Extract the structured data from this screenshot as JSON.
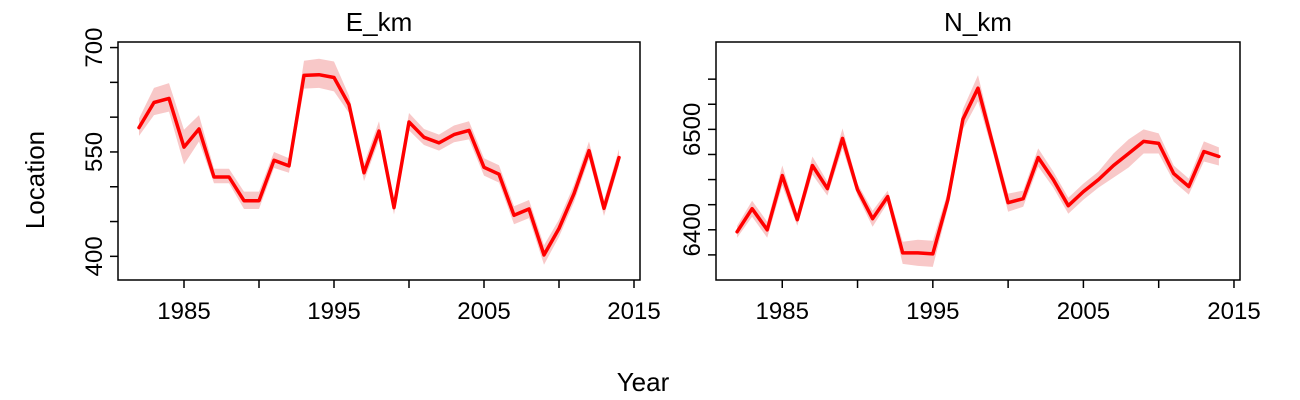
{
  "figure": {
    "xlabel": "Year",
    "ylabel": "Location",
    "line_color": "#ff0000",
    "band_color": "#f8c8c8"
  },
  "chart_data": [
    {
      "type": "line",
      "title": "E_km",
      "xlabel": "Year",
      "ylabel": "Location",
      "xlim": [
        1980.6,
        2015.4
      ],
      "ylim": [
        366,
        708
      ],
      "x_ticks": [
        1985,
        1995,
        2005,
        2015
      ],
      "x_minor_ticks": [
        1990,
        2000,
        2010
      ],
      "y_ticks": [
        400,
        550,
        700
      ],
      "y_minor_ticks": [
        450,
        500,
        600,
        650
      ],
      "x": [
        1982,
        1983,
        1984,
        1985,
        1986,
        1987,
        1988,
        1989,
        1990,
        1991,
        1992,
        1993,
        1994,
        1995,
        1996,
        1997,
        1998,
        1999,
        2000,
        2001,
        2002,
        2003,
        2004,
        2005,
        2006,
        2007,
        2008,
        2009,
        2010,
        2011,
        2012,
        2013,
        2014
      ],
      "series": [
        {
          "values": [
            585,
            621,
            627,
            557,
            583,
            514,
            514,
            480,
            480,
            538,
            530,
            660,
            661,
            657,
            618,
            520,
            580,
            470,
            593,
            571,
            563,
            575,
            581,
            528,
            518,
            459,
            468,
            402,
            440,
            490,
            552,
            469,
            542
          ],
          "lower": [
            573,
            603,
            608,
            532,
            565,
            505,
            505,
            468,
            468,
            527,
            520,
            641,
            642,
            637,
            606,
            508,
            567,
            460,
            581,
            560,
            552,
            564,
            568,
            516,
            506,
            446,
            455,
            388,
            428,
            478,
            540,
            458,
            531
          ],
          "upper": [
            598,
            642,
            649,
            582,
            603,
            526,
            526,
            493,
            493,
            550,
            541,
            681,
            684,
            680,
            631,
            533,
            594,
            481,
            606,
            583,
            575,
            588,
            594,
            541,
            531,
            472,
            481,
            416,
            453,
            503,
            565,
            481,
            554
          ]
        }
      ]
    },
    {
      "type": "line",
      "title": "N_km",
      "xlabel": "Year",
      "ylabel": "Location",
      "xlim": [
        1980.6,
        2015.4
      ],
      "ylim": [
        6350,
        6587
      ],
      "x_ticks": [
        1985,
        1995,
        2005,
        2015
      ],
      "x_minor_ticks": [
        1990,
        2000,
        2010
      ],
      "y_ticks": [
        6400,
        6500
      ],
      "y_minor_ticks": [
        6375,
        6425,
        6450,
        6475,
        6525,
        6550
      ],
      "x": [
        1982,
        1983,
        1984,
        1985,
        1986,
        1987,
        1988,
        1989,
        1990,
        1991,
        1992,
        1993,
        1994,
        1995,
        1996,
        1997,
        1998,
        1999,
        2000,
        2001,
        2002,
        2003,
        2004,
        2005,
        2006,
        2007,
        2008,
        2009,
        2010,
        2011,
        2012,
        2013,
        2014
      ],
      "series": [
        {
          "values": [
            6398,
            6421,
            6400,
            6454,
            6410,
            6464,
            6441,
            6491,
            6440,
            6411,
            6433,
            6377,
            6377,
            6376,
            6430,
            6510,
            6541,
            6484,
            6427,
            6431,
            6472,
            6450,
            6424,
            6438,
            6450,
            6464,
            6476,
            6488,
            6486,
            6456,
            6443,
            6478,
            6473
          ],
          "lower": [
            6392,
            6413,
            6392,
            6444,
            6404,
            6455,
            6434,
            6481,
            6434,
            6403,
            6427,
            6366,
            6364,
            6363,
            6422,
            6500,
            6528,
            6476,
            6418,
            6423,
            6463,
            6442,
            6416,
            6430,
            6442,
            6452,
            6462,
            6476,
            6476,
            6448,
            6435,
            6468,
            6464
          ],
          "upper": [
            6404,
            6429,
            6408,
            6464,
            6416,
            6473,
            6448,
            6501,
            6446,
            6419,
            6439,
            6388,
            6390,
            6389,
            6438,
            6520,
            6554,
            6492,
            6436,
            6439,
            6481,
            6458,
            6432,
            6446,
            6458,
            6476,
            6490,
            6500,
            6496,
            6464,
            6451,
            6488,
            6482
          ]
        }
      ]
    }
  ]
}
